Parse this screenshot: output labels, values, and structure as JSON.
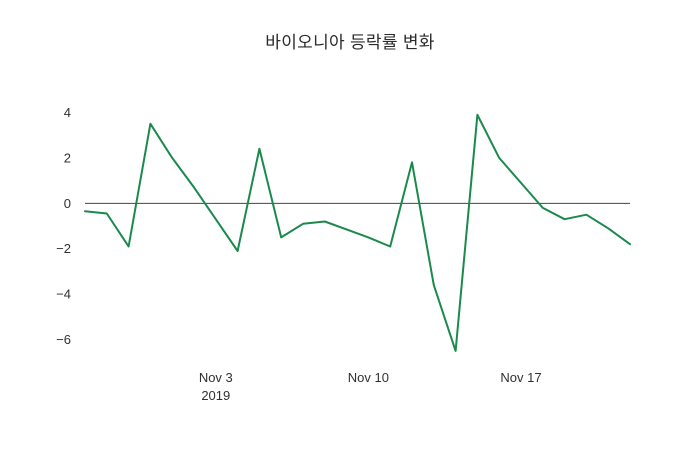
{
  "page": {
    "background_color": "#ffffff"
  },
  "chart_data": {
    "type": "line",
    "title": "바이오니아 등락률 변화",
    "xlabel": "",
    "ylabel": "",
    "x": [
      "2019-10-28",
      "2019-10-29",
      "2019-10-30",
      "2019-10-31",
      "2019-11-01",
      "2019-11-02",
      "2019-11-03",
      "2019-11-04",
      "2019-11-05",
      "2019-11-06",
      "2019-11-07",
      "2019-11-08",
      "2019-11-09",
      "2019-11-10",
      "2019-11-11",
      "2019-11-12",
      "2019-11-13",
      "2019-11-14",
      "2019-11-15",
      "2019-11-16",
      "2019-11-17",
      "2019-11-18",
      "2019-11-19",
      "2019-11-20",
      "2019-11-21",
      "2019-11-22"
    ],
    "values": [
      -0.35,
      -0.45,
      -1.9,
      3.5,
      2.0,
      0.7,
      -0.7,
      -2.1,
      2.4,
      -1.5,
      -0.9,
      -0.8,
      -1.15,
      -1.5,
      -1.9,
      1.8,
      -3.6,
      -6.5,
      3.9,
      2.0,
      0.9,
      -0.2,
      -0.7,
      -0.5,
      -1.1,
      -1.8
    ],
    "ylim": [
      -6.9,
      4.55
    ],
    "yticks": [
      4,
      2,
      0,
      -2,
      -4,
      -6
    ],
    "xticks": [
      {
        "index": 6,
        "label": "Nov 3",
        "sublabel": "2019"
      },
      {
        "index": 13,
        "label": "Nov 10"
      },
      {
        "index": 20,
        "label": "Nov 17"
      }
    ],
    "line_color": "#1a8a4c",
    "zero_line_color": "#444444",
    "grid": false,
    "legend": "none"
  }
}
